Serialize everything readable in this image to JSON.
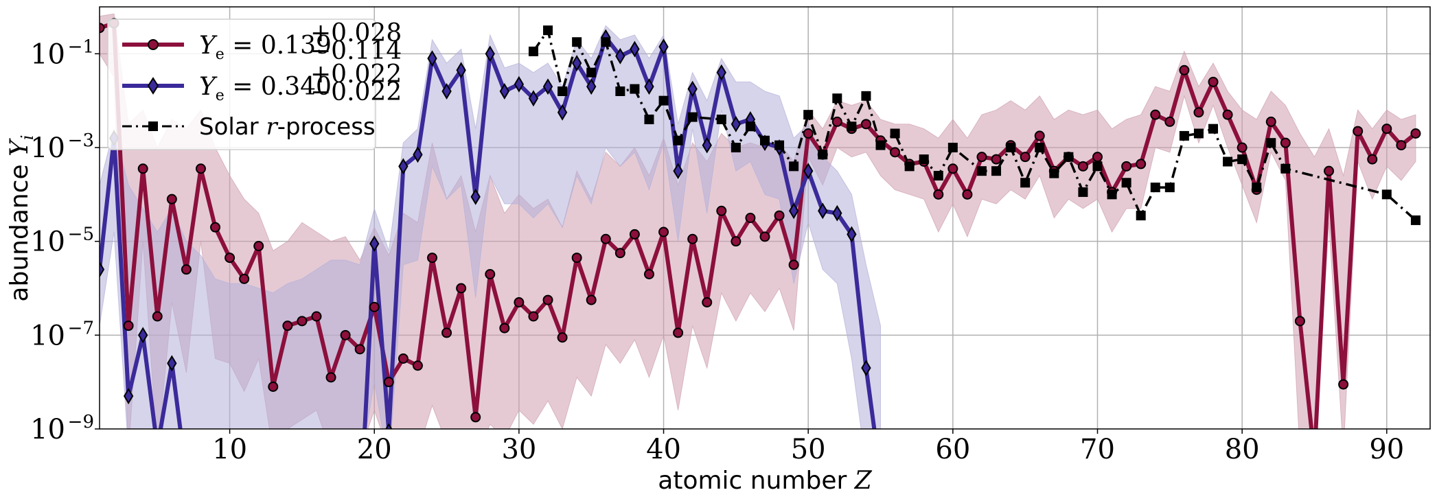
{
  "chart_data": {
    "type": "line",
    "xlabel_prefix": "atomic number ",
    "xlabel_var": "Z",
    "ylabel_prefix": "abundance ",
    "ylabel_var": "Y",
    "ylabel_sub": "i",
    "xlim": [
      1,
      93
    ],
    "ylim_log10": [
      -9,
      0
    ],
    "y_scale": "log",
    "grid": true,
    "legend_position": "top-left",
    "x_ticks": [
      10,
      20,
      30,
      40,
      50,
      60,
      70,
      80,
      90
    ],
    "y_ticks": [
      {
        "exp": -1,
        "base": "10",
        "sup": "−1"
      },
      {
        "exp": -3,
        "base": "10",
        "sup": "−3"
      },
      {
        "exp": -5,
        "base": "10",
        "sup": "−5"
      },
      {
        "exp": -7,
        "base": "10",
        "sup": "−7"
      },
      {
        "exp": -9,
        "base": "10",
        "sup": "−9"
      }
    ],
    "series": [
      {
        "name": "Ye = 0.139 (+0.028 / −0.114)",
        "legend_main": "Y",
        "legend_sub": "e",
        "legend_value": " = 0.139",
        "legend_up": "+0.028",
        "legend_down": "−0.114",
        "color": "#8c0f3c",
        "band_color": "#cf9fb0",
        "marker": "circle",
        "linestyle": "solid",
        "z": [
          1,
          2,
          3,
          4,
          5,
          6,
          7,
          8,
          9,
          10,
          11,
          12,
          13,
          14,
          15,
          16,
          17,
          18,
          19,
          20,
          21,
          22,
          23,
          24,
          25,
          26,
          27,
          28,
          29,
          30,
          31,
          32,
          33,
          34,
          35,
          36,
          37,
          38,
          39,
          40,
          41,
          42,
          43,
          44,
          45,
          46,
          47,
          48,
          49,
          50,
          51,
          52,
          53,
          54,
          55,
          56,
          57,
          58,
          59,
          60,
          61,
          62,
          63,
          64,
          65,
          66,
          67,
          68,
          69,
          70,
          71,
          72,
          73,
          74,
          75,
          76,
          77,
          78,
          79,
          80,
          81,
          82,
          83,
          84,
          85,
          86,
          87,
          88,
          89,
          90,
          91,
          92
        ],
        "log10_y": [
          -0.45,
          -0.35,
          -6.8,
          -3.45,
          -6.6,
          -4.1,
          -5.6,
          -3.45,
          -4.7,
          -5.35,
          -5.8,
          -5.1,
          -8.1,
          -6.8,
          -6.7,
          -6.6,
          -7.9,
          -7.0,
          -7.3,
          -6.4,
          -8.0,
          -7.5,
          -7.65,
          -5.35,
          -6.95,
          -6.0,
          -8.75,
          -5.7,
          -6.85,
          -6.3,
          -6.6,
          -6.25,
          -7.05,
          -5.35,
          -6.25,
          -4.95,
          -5.25,
          -4.85,
          -5.7,
          -4.8,
          -6.95,
          -4.95,
          -6.3,
          -4.35,
          -5.0,
          -4.5,
          -4.9,
          -4.45,
          -5.5,
          -2.7,
          -3.15,
          -2.45,
          -2.6,
          -2.5,
          -2.85,
          -3.1,
          -3.35,
          -3.3,
          -4.0,
          -3.45,
          -4.0,
          -3.2,
          -3.25,
          -2.95,
          -3.2,
          -2.75,
          -3.5,
          -3.2,
          -3.4,
          -3.2,
          -3.95,
          -3.4,
          -3.35,
          -2.3,
          -2.45,
          -1.35,
          -2.25,
          -1.6,
          -2.3,
          -3.0,
          -3.9,
          -2.45,
          -2.9,
          -6.7,
          -9.6,
          -3.5,
          -8.05,
          -2.65,
          -3.25,
          -2.6,
          -2.95,
          -2.7
        ],
        "log10_band_high": [
          -0.2,
          -0.15,
          -2.5,
          -2.2,
          -3.0,
          -2.4,
          -2.6,
          -2.2,
          -3.0,
          -3.6,
          -4.1,
          -4.4,
          -5.2,
          -5.0,
          -4.6,
          -4.8,
          -5.0,
          -4.9,
          -5.4,
          -4.7,
          -5.3,
          -4.4,
          -4.6,
          -2.9,
          -4.1,
          -3.6,
          -4.8,
          -3.6,
          -4.4,
          -4.0,
          -4.3,
          -4.1,
          -4.7,
          -3.5,
          -4.1,
          -3.1,
          -3.4,
          -3.0,
          -3.6,
          -2.8,
          -3.8,
          -2.9,
          -3.3,
          -2.7,
          -3.0,
          -2.9,
          -3.0,
          -2.9,
          -3.3,
          -2.2,
          -2.6,
          -2.0,
          -2.1,
          -2.0,
          -2.4,
          -2.5,
          -2.5,
          -2.6,
          -2.8,
          -2.4,
          -2.8,
          -2.3,
          -2.2,
          -2.0,
          -2.2,
          -1.9,
          -2.4,
          -2.2,
          -2.3,
          -2.2,
          -2.6,
          -2.4,
          -2.3,
          -1.7,
          -1.8,
          -0.95,
          -1.7,
          -1.2,
          -1.8,
          -2.2,
          -2.4,
          -1.8,
          -2.1,
          -2.7,
          -3.2,
          -2.6,
          -3.6,
          -2.2,
          -2.6,
          -2.2,
          -2.4,
          -2.3
        ],
        "log10_band_low": [
          -1.0,
          -1.5,
          -9.5,
          -5.0,
          -9.5,
          -6.3,
          -7.8,
          -5.0,
          -7.5,
          -7.6,
          -8.2,
          -7.5,
          -9.5,
          -9.0,
          -8.8,
          -8.6,
          -9.5,
          -9.0,
          -9.5,
          -8.6,
          -9.5,
          -9.4,
          -9.5,
          -8.5,
          -9.3,
          -9.0,
          -9.6,
          -8.9,
          -9.2,
          -8.6,
          -8.9,
          -8.4,
          -9.0,
          -7.9,
          -8.3,
          -7.2,
          -7.6,
          -7.1,
          -7.9,
          -7.0,
          -8.6,
          -6.8,
          -7.7,
          -6.1,
          -6.7,
          -6.1,
          -6.5,
          -6.0,
          -6.9,
          -3.2,
          -3.8,
          -3.0,
          -3.2,
          -3.1,
          -3.6,
          -3.9,
          -4.0,
          -4.1,
          -4.8,
          -4.2,
          -4.9,
          -4.1,
          -4.2,
          -3.9,
          -4.1,
          -3.6,
          -4.5,
          -4.1,
          -4.3,
          -4.1,
          -4.8,
          -4.3,
          -4.3,
          -3.0,
          -3.1,
          -1.9,
          -2.9,
          -2.1,
          -3.0,
          -3.8,
          -4.6,
          -3.1,
          -3.7,
          -9.5,
          -9.7,
          -4.6,
          -9.5,
          -3.3,
          -4.1,
          -3.4,
          -3.7,
          -3.3
        ]
      },
      {
        "name": "Ye = 0.340 (+0.022 / −0.022)",
        "legend_main": "Y",
        "legend_sub": "e",
        "legend_value": " = 0.340",
        "legend_up": "+0.022",
        "legend_down": "−0.022",
        "color": "#3a2a9a",
        "band_color": "#b5b0d8",
        "marker": "diamond",
        "linestyle": "solid",
        "z": [
          1,
          2,
          3,
          4,
          5,
          6,
          7,
          8,
          9,
          10,
          11,
          12,
          13,
          14,
          15,
          16,
          17,
          18,
          19,
          20,
          21,
          22,
          23,
          24,
          25,
          26,
          27,
          28,
          29,
          30,
          31,
          32,
          33,
          34,
          35,
          36,
          37,
          38,
          39,
          40,
          41,
          42,
          43,
          44,
          45,
          46,
          47,
          48,
          49,
          50,
          51,
          52,
          53,
          54,
          55
        ],
        "log10_y": [
          -5.6,
          -2.8,
          -8.3,
          -7.0,
          -9.4,
          -7.6,
          -10.0,
          -10.6,
          -11.0,
          -11.0,
          -11.0,
          -11.0,
          -11.0,
          -11.0,
          -11.0,
          -11.0,
          -11.0,
          -11.0,
          -11.0,
          -5.05,
          -9.05,
          -3.4,
          -3.15,
          -1.1,
          -1.8,
          -1.35,
          -4.05,
          -1.0,
          -1.8,
          -1.65,
          -1.95,
          -1.7,
          -2.25,
          -1.2,
          -1.7,
          -0.65,
          -1.05,
          -0.9,
          -1.7,
          -0.85,
          -3.5,
          -1.75,
          -2.95,
          -1.4,
          -2.5,
          -2.4,
          -2.9,
          -3.0,
          -4.35,
          -3.5,
          -4.35,
          -4.4,
          -4.85,
          -7.7,
          -10.0
        ],
        "log10_band_high": [
          -3.8,
          -2.6,
          -3.8,
          -4.3,
          -4.8,
          -4.3,
          -5.0,
          -5.3,
          -5.8,
          -5.9,
          -5.9,
          -6.0,
          -6.1,
          -5.9,
          -5.8,
          -5.6,
          -5.4,
          -5.4,
          -5.5,
          -4.3,
          -5.2,
          -2.9,
          -2.6,
          -0.7,
          -1.2,
          -0.9,
          -2.6,
          -0.6,
          -1.3,
          -1.2,
          -1.4,
          -1.2,
          -1.7,
          -0.7,
          -1.1,
          -0.4,
          -0.7,
          -0.6,
          -1.1,
          -0.6,
          -2.5,
          -1.4,
          -2.0,
          -1.1,
          -1.6,
          -1.6,
          -1.8,
          -1.9,
          -2.8,
          -2.5,
          -3.2,
          -3.5,
          -4.0,
          -5.5,
          -6.8
        ],
        "log10_band_low": [
          -6.8,
          -4.8,
          -9.5,
          -9.5,
          -9.6,
          -9.5,
          -9.6,
          -9.7,
          -9.8,
          -9.8,
          -9.8,
          -9.8,
          -9.8,
          -9.8,
          -9.8,
          -9.8,
          -9.8,
          -9.8,
          -9.8,
          -8.0,
          -9.8,
          -5.5,
          -5.4,
          -3.4,
          -4.1,
          -3.8,
          -6.2,
          -3.6,
          -4.2,
          -4.2,
          -4.5,
          -4.2,
          -4.7,
          -3.6,
          -4.2,
          -3.0,
          -3.4,
          -3.1,
          -3.9,
          -2.9,
          -5.0,
          -2.6,
          -4.4,
          -2.2,
          -3.5,
          -3.3,
          -4.0,
          -4.1,
          -5.9,
          -4.6,
          -5.6,
          -5.9,
          -7.5,
          -9.8,
          -10.0
        ]
      },
      {
        "name": "Solar r-process",
        "legend_label": "Solar ",
        "legend_var": "r",
        "legend_suffix": "-process",
        "color": "#000000",
        "marker": "square",
        "linestyle": "dashdot",
        "z": [
          31,
          32,
          33,
          34,
          35,
          36,
          37,
          38,
          39,
          40,
          41,
          42,
          44,
          45,
          46,
          47,
          48,
          49,
          50,
          51,
          52,
          53,
          54,
          55,
          56,
          57,
          58,
          59,
          60,
          62,
          63,
          64,
          65,
          66,
          67,
          68,
          69,
          70,
          71,
          72,
          73,
          74,
          75,
          76,
          77,
          78,
          79,
          80,
          81,
          82,
          83,
          90,
          92
        ],
        "log10_y": [
          -0.95,
          -0.5,
          -1.8,
          -0.75,
          -1.4,
          -0.75,
          -1.8,
          -1.75,
          -2.4,
          -2.0,
          -2.85,
          -2.35,
          -2.4,
          -3.0,
          -2.55,
          -2.85,
          -2.95,
          -3.4,
          -2.3,
          -3.15,
          -1.95,
          -2.55,
          -1.9,
          -2.95,
          -2.7,
          -3.4,
          -3.25,
          -3.6,
          -3.0,
          -3.5,
          -3.5,
          -3.0,
          -3.75,
          -3.0,
          -3.55,
          -3.2,
          -3.95,
          -3.4,
          -4.0,
          -3.75,
          -4.45,
          -3.85,
          -3.85,
          -2.75,
          -2.7,
          -2.6,
          -3.3,
          -3.25,
          -3.85,
          -2.9,
          -3.45,
          -4.0,
          -4.55
        ]
      }
    ]
  }
}
